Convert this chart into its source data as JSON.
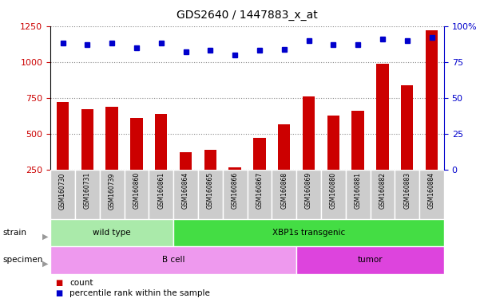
{
  "title": "GDS2640 / 1447883_x_at",
  "samples": [
    "GSM160730",
    "GSM160731",
    "GSM160739",
    "GSM160860",
    "GSM160861",
    "GSM160864",
    "GSM160865",
    "GSM160866",
    "GSM160867",
    "GSM160868",
    "GSM160869",
    "GSM160880",
    "GSM160881",
    "GSM160882",
    "GSM160883",
    "GSM160884"
  ],
  "counts": [
    720,
    670,
    690,
    610,
    640,
    370,
    390,
    265,
    475,
    565,
    760,
    630,
    660,
    990,
    840,
    1220
  ],
  "percentile_ranks": [
    88,
    87,
    88,
    85,
    88,
    82,
    83,
    80,
    83,
    84,
    90,
    87,
    87,
    91,
    90,
    92
  ],
  "strain_groups": [
    {
      "label": "wild type",
      "start": 0,
      "end": 5,
      "color": "#aaeaaa"
    },
    {
      "label": "XBP1s transgenic",
      "start": 5,
      "end": 16,
      "color": "#44dd44"
    }
  ],
  "specimen_groups": [
    {
      "label": "B cell",
      "start": 0,
      "end": 10,
      "color": "#ee99ee"
    },
    {
      "label": "tumor",
      "start": 10,
      "end": 16,
      "color": "#dd44dd"
    }
  ],
  "left_ylim": [
    250,
    1250
  ],
  "left_yticks": [
    250,
    500,
    750,
    1000,
    1250
  ],
  "right_ylim": [
    0,
    100
  ],
  "right_yticks": [
    0,
    25,
    50,
    75,
    100
  ],
  "bar_color": "#cc0000",
  "dot_color": "#0000cc",
  "grid_color": "#888888",
  "bg_color": "#ffffff",
  "tick_area_color": "#cccccc",
  "tick_area_border": "#ffffff"
}
